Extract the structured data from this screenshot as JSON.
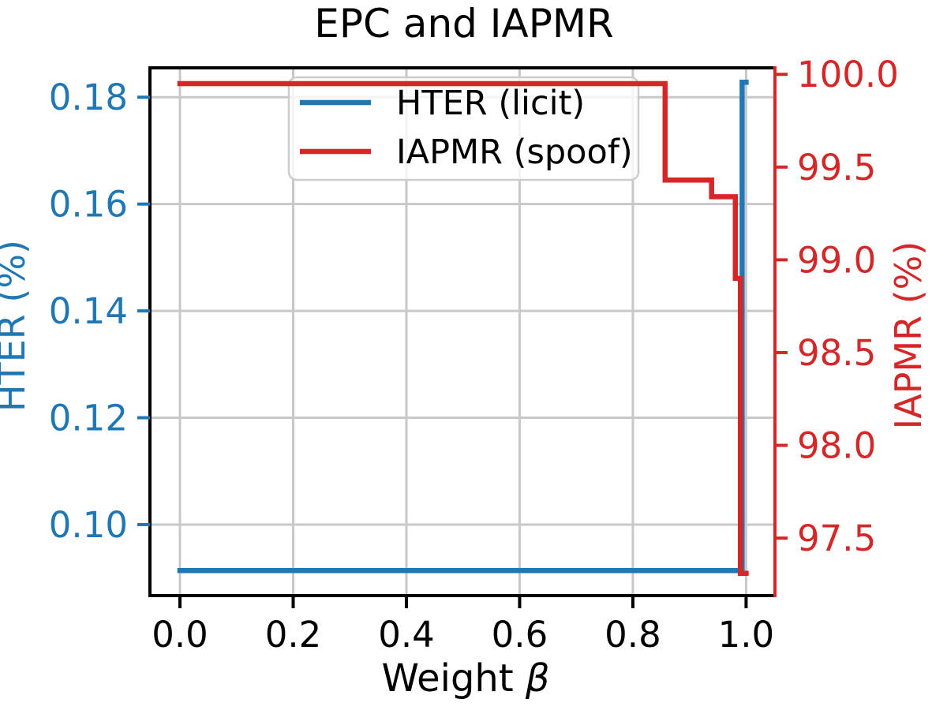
{
  "chart_data": {
    "type": "line",
    "title": "EPC and IAPMR",
    "xlabel": "Weight β",
    "xlabel_prefix": "Weight ",
    "xlabel_symbol": "β",
    "xlim": [
      -0.053,
      1.051
    ],
    "x_tick_values": [
      0.0,
      0.2,
      0.4,
      0.6,
      0.8,
      1.0
    ],
    "x_tick_labels": [
      "0.0",
      "0.2",
      "0.4",
      "0.6",
      "0.8",
      "1.0"
    ],
    "grid": true,
    "left_axis": {
      "label": "HTER (%)",
      "color": "#1f77b4",
      "ylim": [
        0.0867,
        0.1855
      ],
      "tick_values": [
        0.18,
        0.16,
        0.14,
        0.12,
        0.1
      ],
      "tick_labels": [
        "0.18",
        "0.16",
        "0.14",
        "0.12",
        "0.10"
      ]
    },
    "right_axis": {
      "label": "IAPMR (%)",
      "color": "#d62728",
      "ylim": [
        97.19,
        100.035
      ],
      "tick_values": [
        100.0,
        99.5,
        99.0,
        98.5,
        98.0,
        97.5
      ],
      "tick_labels": [
        "100.0",
        "99.5",
        "99.0",
        "98.5",
        "98.0",
        "97.5"
      ]
    },
    "series": [
      {
        "name": "HTER (licit)",
        "axis": "left",
        "color": "#1f77b4",
        "points": [
          [
            0.0,
            0.0914
          ],
          [
            0.993,
            0.0914
          ],
          [
            0.993,
            0.1828
          ],
          [
            1.0,
            0.1828
          ]
        ]
      },
      {
        "name": "IAPMR (spoof)",
        "axis": "right",
        "color": "#d62728",
        "points": [
          [
            0.0,
            99.95
          ],
          [
            0.857,
            99.95
          ],
          [
            0.857,
            99.43
          ],
          [
            0.939,
            99.43
          ],
          [
            0.939,
            99.34
          ],
          [
            0.981,
            99.34
          ],
          [
            0.981,
            98.9
          ],
          [
            0.99,
            98.9
          ],
          [
            0.99,
            97.31
          ],
          [
            1.0,
            97.31
          ]
        ]
      }
    ],
    "legend": {
      "position": "upper left area",
      "entries": [
        "HTER (licit)",
        "IAPMR (spoof)"
      ]
    },
    "colors": {
      "background": "#ffffff",
      "grid": "#c8c8c8",
      "spine": "#000000",
      "right_spine": "#d62728",
      "legend_border": "#cccccc",
      "title_text": "#000000"
    }
  }
}
